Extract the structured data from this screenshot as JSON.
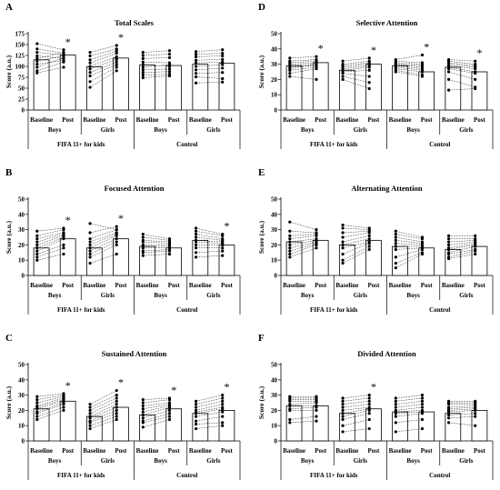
{
  "figure": {
    "panel_letters": [
      "A",
      "D",
      "B",
      "E",
      "C",
      "F"
    ]
  },
  "colors": {
    "bar_fill": "#ffffff",
    "ink": "#000000"
  },
  "chart_data": [
    {
      "letter": "A",
      "type": "bar",
      "title": "Total Scales",
      "ylabel": "Score (a.u.)",
      "ylim": [
        0,
        175
      ],
      "ticks": [
        0,
        25,
        50,
        75,
        100,
        125,
        150,
        175
      ],
      "categories": [
        "Baseline",
        "Post",
        "Baseline",
        "Post",
        "Baseline",
        "Post",
        "Baseline",
        "Post"
      ],
      "subgroups": [
        "Boys",
        "Girls",
        "Boys",
        "Girls"
      ],
      "groups": [
        "FIFA 11+ for kids",
        "Control"
      ],
      "values": [
        115,
        126,
        99,
        119,
        103,
        102,
        105,
        107
      ],
      "significance": [
        false,
        true,
        false,
        true,
        false,
        false,
        false,
        false
      ],
      "individual_pairs": [
        [
          [
            152,
            138
          ],
          [
            140,
            130
          ],
          [
            132,
            126
          ],
          [
            124,
            118
          ],
          [
            118,
            132
          ],
          [
            112,
            124
          ],
          [
            105,
            114
          ],
          [
            98,
            120
          ],
          [
            90,
            110
          ],
          [
            85,
            98
          ]
        ],
        [
          [
            132,
            148
          ],
          [
            124,
            140
          ],
          [
            115,
            135
          ],
          [
            108,
            130
          ],
          [
            100,
            122
          ],
          [
            94,
            116
          ],
          [
            86,
            110
          ],
          [
            78,
            104
          ],
          [
            65,
            98
          ],
          [
            52,
            90
          ]
        ],
        [
          [
            132,
            136
          ],
          [
            125,
            128
          ],
          [
            118,
            120
          ],
          [
            110,
            108
          ],
          [
            104,
            100
          ],
          [
            98,
            104
          ],
          [
            92,
            94
          ],
          [
            86,
            88
          ],
          [
            80,
            82
          ],
          [
            74,
            78
          ]
        ],
        [
          [
            134,
            138
          ],
          [
            128,
            130
          ],
          [
            122,
            124
          ],
          [
            114,
            116
          ],
          [
            108,
            110
          ],
          [
            100,
            104
          ],
          [
            92,
            96
          ],
          [
            84,
            86
          ],
          [
            76,
            72
          ],
          [
            62,
            64
          ]
        ]
      ]
    },
    {
      "letter": "D",
      "type": "bar",
      "title": "Selective Attention",
      "ylabel": "Score (a.u.)",
      "ylim": [
        0,
        50
      ],
      "ticks": [
        0,
        10,
        20,
        30,
        40,
        50
      ],
      "categories": [
        "Baseline",
        "Post",
        "Baseline",
        "Post",
        "Baseline",
        "Post",
        "Baseline",
        "Post"
      ],
      "subgroups": [
        "Boys",
        "Girls",
        "Boys",
        "Girls"
      ],
      "groups": [
        "FIFA 11+ for kids",
        "Control"
      ],
      "values": [
        29,
        31,
        26,
        30,
        29,
        25,
        28,
        25
      ],
      "significance": [
        false,
        true,
        false,
        true,
        false,
        true,
        false,
        true
      ],
      "individual_pairs": [
        [
          [
            34,
            35
          ],
          [
            32,
            33
          ],
          [
            31,
            32
          ],
          [
            30,
            31
          ],
          [
            29,
            30
          ],
          [
            28,
            29
          ],
          [
            27,
            30
          ],
          [
            26,
            28
          ],
          [
            24,
            27
          ],
          [
            22,
            20
          ]
        ],
        [
          [
            32,
            34
          ],
          [
            30,
            32
          ],
          [
            29,
            31
          ],
          [
            28,
            30
          ],
          [
            27,
            29
          ],
          [
            26,
            28
          ],
          [
            25,
            26
          ],
          [
            24,
            22
          ],
          [
            22,
            18
          ],
          [
            20,
            14
          ]
        ],
        [
          [
            33,
            36
          ],
          [
            32,
            31
          ],
          [
            31,
            30
          ],
          [
            30,
            29
          ],
          [
            30,
            28
          ],
          [
            29,
            27
          ],
          [
            28,
            26
          ],
          [
            27,
            25
          ],
          [
            26,
            23
          ],
          [
            25,
            22
          ]
        ],
        [
          [
            33,
            32
          ],
          [
            32,
            30
          ],
          [
            31,
            29
          ],
          [
            30,
            28
          ],
          [
            29,
            27
          ],
          [
            28,
            25
          ],
          [
            27,
            24
          ],
          [
            25,
            20
          ],
          [
            20,
            15
          ],
          [
            13,
            14
          ]
        ]
      ]
    },
    {
      "letter": "B",
      "type": "bar",
      "title": "Focused Attention",
      "ylabel": "Score (a.u.)",
      "ylim": [
        0,
        50
      ],
      "ticks": [
        0,
        10,
        20,
        30,
        40,
        50
      ],
      "categories": [
        "Baseline",
        "Post",
        "Baseline",
        "Post",
        "Baseline",
        "Post",
        "Baseline",
        "Post"
      ],
      "subgroups": [
        "Boys",
        "Girls",
        "Boys",
        "Girls"
      ],
      "groups": [
        "FIFA 11+ for kids",
        "Control"
      ],
      "values": [
        18,
        24,
        18,
        24,
        19,
        18,
        23,
        20
      ],
      "significance": [
        false,
        true,
        false,
        true,
        false,
        false,
        false,
        true
      ],
      "individual_pairs": [
        [
          [
            29,
            31
          ],
          [
            26,
            30
          ],
          [
            24,
            28
          ],
          [
            22,
            27
          ],
          [
            20,
            26
          ],
          [
            18,
            25
          ],
          [
            16,
            24
          ],
          [
            14,
            20
          ],
          [
            12,
            18
          ],
          [
            10,
            14
          ]
        ],
        [
          [
            34,
            30
          ],
          [
            28,
            32
          ],
          [
            24,
            30
          ],
          [
            22,
            28
          ],
          [
            20,
            27
          ],
          [
            18,
            26
          ],
          [
            16,
            24
          ],
          [
            14,
            22
          ],
          [
            12,
            20
          ],
          [
            8,
            14
          ]
        ],
        [
          [
            27,
            24
          ],
          [
            25,
            23
          ],
          [
            23,
            22
          ],
          [
            22,
            21
          ],
          [
            20,
            20
          ],
          [
            19,
            19
          ],
          [
            18,
            18
          ],
          [
            16,
            17
          ],
          [
            15,
            16
          ],
          [
            13,
            14
          ]
        ],
        [
          [
            31,
            27
          ],
          [
            29,
            26
          ],
          [
            27,
            24
          ],
          [
            25,
            23
          ],
          [
            23,
            22
          ],
          [
            22,
            21
          ],
          [
            20,
            20
          ],
          [
            18,
            18
          ],
          [
            15,
            16
          ],
          [
            12,
            13
          ]
        ]
      ]
    },
    {
      "letter": "E",
      "type": "bar",
      "title": "Alternating Attention",
      "ylabel": "Score (a.u.)",
      "ylim": [
        0,
        50
      ],
      "ticks": [
        0,
        10,
        20,
        30,
        40,
        50
      ],
      "categories": [
        "Baseline",
        "Post",
        "Baseline",
        "Post",
        "Baseline",
        "Post",
        "Baseline",
        "Post"
      ],
      "subgroups": [
        "Boys",
        "Girls",
        "Boys",
        "Girls"
      ],
      "groups": [
        "FIFA 11+ for kids",
        "Control"
      ],
      "values": [
        22,
        23,
        20,
        23,
        19,
        18,
        17,
        19
      ],
      "significance": [
        false,
        false,
        false,
        false,
        false,
        false,
        false,
        false
      ],
      "individual_pairs": [
        [
          [
            35,
            30
          ],
          [
            29,
            28
          ],
          [
            26,
            27
          ],
          [
            24,
            26
          ],
          [
            22,
            24
          ],
          [
            20,
            23
          ],
          [
            18,
            22
          ],
          [
            16,
            21
          ],
          [
            14,
            20
          ],
          [
            12,
            18
          ]
        ],
        [
          [
            33,
            31
          ],
          [
            31,
            30
          ],
          [
            28,
            29
          ],
          [
            25,
            28
          ],
          [
            22,
            26
          ],
          [
            20,
            24
          ],
          [
            18,
            22
          ],
          [
            14,
            21
          ],
          [
            10,
            19
          ],
          [
            8,
            17
          ]
        ],
        [
          [
            29,
            25
          ],
          [
            27,
            24
          ],
          [
            25,
            22
          ],
          [
            23,
            21
          ],
          [
            21,
            20
          ],
          [
            19,
            19
          ],
          [
            17,
            18
          ],
          [
            12,
            17
          ],
          [
            8,
            15
          ],
          [
            5,
            14
          ]
        ],
        [
          [
            26,
            26
          ],
          [
            24,
            24
          ],
          [
            22,
            23
          ],
          [
            20,
            22
          ],
          [
            18,
            21
          ],
          [
            17,
            20
          ],
          [
            15,
            19
          ],
          [
            14,
            17
          ],
          [
            12,
            16
          ],
          [
            11,
            14
          ]
        ]
      ]
    },
    {
      "letter": "C",
      "type": "bar",
      "title": "Sustained Attention",
      "ylabel": "Score (a.u.)",
      "ylim": [
        0,
        50
      ],
      "ticks": [
        0,
        10,
        20,
        30,
        40,
        50
      ],
      "categories": [
        "Baseline",
        "Post",
        "Baseline",
        "Post",
        "Baseline",
        "Post",
        "Baseline",
        "Post"
      ],
      "subgroups": [
        "Boys",
        "Girls",
        "Boys",
        "Girls"
      ],
      "groups": [
        "FIFA 11+ for kids",
        "Control"
      ],
      "values": [
        21,
        26,
        16,
        22,
        17,
        21,
        18,
        20
      ],
      "significance": [
        false,
        true,
        false,
        true,
        false,
        true,
        false,
        true
      ],
      "individual_pairs": [
        [
          [
            29,
            31
          ],
          [
            27,
            30
          ],
          [
            25,
            29
          ],
          [
            23,
            28
          ],
          [
            22,
            27
          ],
          [
            21,
            26
          ],
          [
            19,
            25
          ],
          [
            18,
            24
          ],
          [
            16,
            22
          ],
          [
            14,
            20
          ]
        ],
        [
          [
            24,
            33
          ],
          [
            22,
            30
          ],
          [
            20,
            28
          ],
          [
            18,
            26
          ],
          [
            16,
            24
          ],
          [
            15,
            22
          ],
          [
            13,
            20
          ],
          [
            12,
            18
          ],
          [
            10,
            16
          ],
          [
            8,
            14
          ]
        ],
        [
          [
            27,
            28
          ],
          [
            25,
            27
          ],
          [
            23,
            25
          ],
          [
            21,
            24
          ],
          [
            19,
            23
          ],
          [
            17,
            22
          ],
          [
            15,
            20
          ],
          [
            13,
            18
          ],
          [
            12,
            16
          ],
          [
            9,
            14
          ]
        ],
        [
          [
            26,
            30
          ],
          [
            24,
            28
          ],
          [
            22,
            26
          ],
          [
            20,
            24
          ],
          [
            19,
            22
          ],
          [
            18,
            21
          ],
          [
            16,
            19
          ],
          [
            13,
            16
          ],
          [
            11,
            12
          ],
          [
            8,
            10
          ]
        ]
      ]
    },
    {
      "letter": "F",
      "type": "bar",
      "title": "Divided Attention",
      "ylabel": "Score (a.u.)",
      "ylim": [
        0,
        50
      ],
      "ticks": [
        0,
        10,
        20,
        30,
        40,
        50
      ],
      "categories": [
        "Baseline",
        "Post",
        "Baseline",
        "Post",
        "Baseline",
        "Post",
        "Baseline",
        "Post"
      ],
      "subgroups": [
        "Boys",
        "Girls",
        "Boys",
        "Girls"
      ],
      "groups": [
        "FIFA 11+ for kids",
        "Control"
      ],
      "values": [
        23,
        23,
        18,
        21,
        19,
        19,
        18,
        20
      ],
      "significance": [
        false,
        false,
        false,
        true,
        false,
        false,
        false,
        false
      ],
      "individual_pairs": [
        [
          [
            29,
            29
          ],
          [
            28,
            28
          ],
          [
            27,
            27
          ],
          [
            26,
            26
          ],
          [
            24,
            25
          ],
          [
            23,
            23
          ],
          [
            21,
            22
          ],
          [
            20,
            20
          ],
          [
            14,
            16
          ],
          [
            12,
            13
          ]
        ],
        [
          [
            28,
            30
          ],
          [
            26,
            28
          ],
          [
            24,
            26
          ],
          [
            22,
            24
          ],
          [
            20,
            22
          ],
          [
            18,
            21
          ],
          [
            16,
            20
          ],
          [
            14,
            18
          ],
          [
            10,
            14
          ],
          [
            6,
            8
          ]
        ],
        [
          [
            28,
            30
          ],
          [
            26,
            28
          ],
          [
            24,
            26
          ],
          [
            22,
            24
          ],
          [
            20,
            22
          ],
          [
            19,
            20
          ],
          [
            18,
            19
          ],
          [
            16,
            18
          ],
          [
            12,
            14
          ],
          [
            6,
            8
          ]
        ],
        [
          [
            26,
            26
          ],
          [
            25,
            25
          ],
          [
            24,
            24
          ],
          [
            22,
            23
          ],
          [
            21,
            22
          ],
          [
            20,
            21
          ],
          [
            19,
            20
          ],
          [
            17,
            18
          ],
          [
            15,
            16
          ],
          [
            12,
            10
          ]
        ]
      ]
    }
  ]
}
